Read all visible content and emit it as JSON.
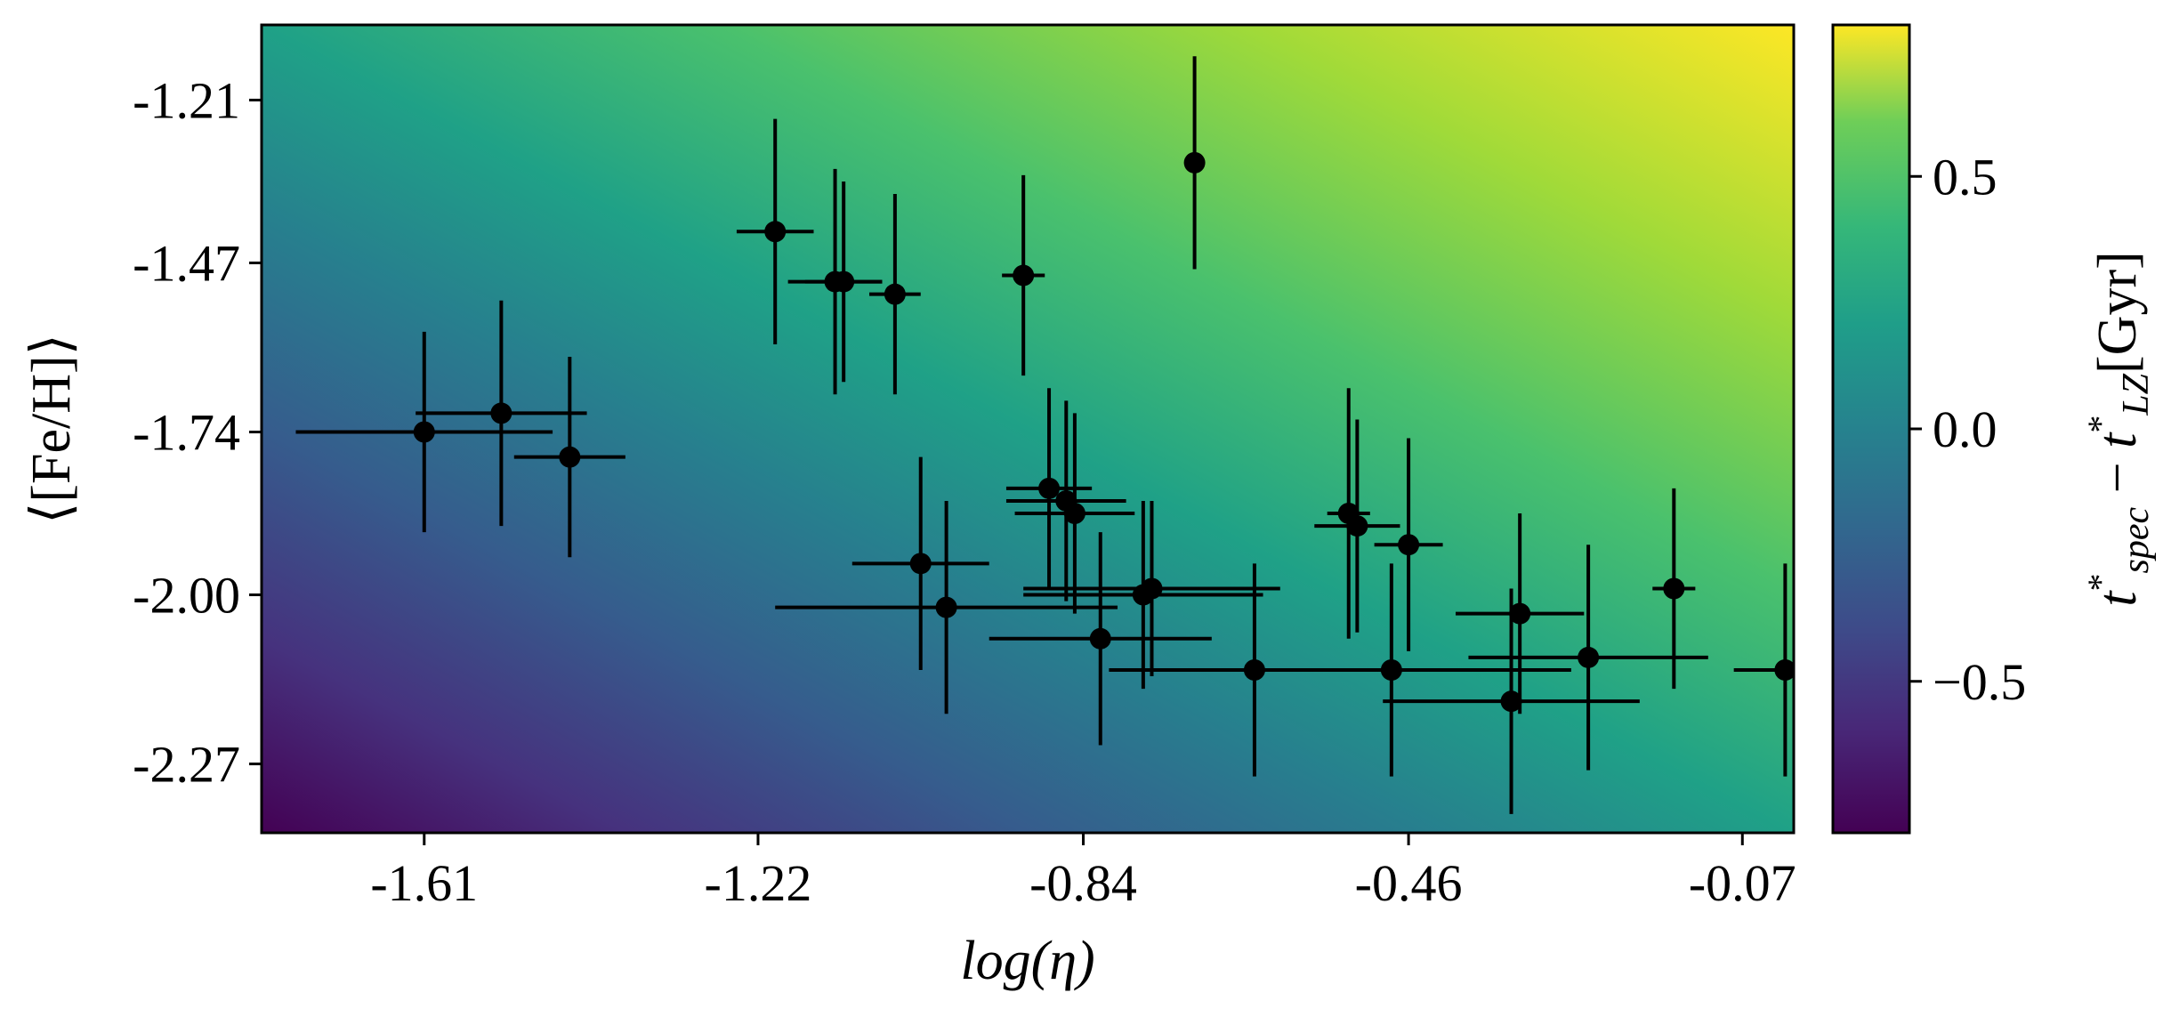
{
  "chart_data": {
    "type": "scatter",
    "xlabel": "log(η)",
    "ylabel": "⟨[Fe/H]⟩",
    "xlim": [
      -1.8,
      -0.01
    ],
    "ylim": [
      -2.38,
      -1.09
    ],
    "xticks": [
      -1.61,
      -1.22,
      -0.84,
      -0.46,
      -0.07
    ],
    "xtick_labels": [
      "-1.61",
      "-1.22",
      "-0.84",
      "-0.46",
      "-0.07"
    ],
    "yticks": [
      -1.21,
      -1.47,
      -1.74,
      -2.0,
      -2.27
    ],
    "ytick_labels": [
      "-1.21",
      "-1.47",
      "-1.74",
      "-2.00",
      "-2.27"
    ],
    "grid": false,
    "background": {
      "type": "heatmap",
      "colormap": "viridis",
      "trend": "increases toward upper-right"
    },
    "colorbar": {
      "label": "t*_spec − t*_LZ [Gyr]",
      "range": [
        -0.8,
        0.8
      ],
      "ticks": [
        0.5,
        0.0,
        -0.5
      ],
      "tick_labels": [
        "0.5",
        "0.0",
        "−0.5"
      ]
    },
    "colors": {
      "points": "#000000"
    },
    "points": [
      {
        "x": -1.61,
        "y": -1.74,
        "xerr": 0.15,
        "yerr": 0.16
      },
      {
        "x": -1.52,
        "y": -1.71,
        "xerr": 0.1,
        "yerr": 0.18
      },
      {
        "x": -1.44,
        "y": -1.78,
        "xerr": 0.065,
        "yerr": 0.16
      },
      {
        "x": -1.2,
        "y": -1.42,
        "xerr": 0.045,
        "yerr": 0.18
      },
      {
        "x": -1.13,
        "y": -1.5,
        "xerr": 0.055,
        "yerr": 0.18
      },
      {
        "x": -1.12,
        "y": -1.5,
        "xerr": 0.045,
        "yerr": 0.16
      },
      {
        "x": -1.06,
        "y": -1.52,
        "xerr": 0.03,
        "yerr": 0.16
      },
      {
        "x": -1.03,
        "y": -1.95,
        "xerr": 0.08,
        "yerr": 0.17
      },
      {
        "x": -1.0,
        "y": -2.02,
        "xerr": 0.2,
        "yerr": 0.17
      },
      {
        "x": -0.91,
        "y": -1.49,
        "xerr": 0.025,
        "yerr": 0.16
      },
      {
        "x": -0.88,
        "y": -1.83,
        "xerr": 0.05,
        "yerr": 0.16
      },
      {
        "x": -0.86,
        "y": -1.85,
        "xerr": 0.07,
        "yerr": 0.16
      },
      {
        "x": -0.85,
        "y": -1.87,
        "xerr": 0.07,
        "yerr": 0.16
      },
      {
        "x": -0.82,
        "y": -2.07,
        "xerr": 0.13,
        "yerr": 0.17
      },
      {
        "x": -0.77,
        "y": -2.0,
        "xerr": 0.14,
        "yerr": 0.15
      },
      {
        "x": -0.76,
        "y": -1.99,
        "xerr": 0.15,
        "yerr": 0.14
      },
      {
        "x": -0.71,
        "y": -1.31,
        "xerr": 0.0,
        "yerr": 0.17
      },
      {
        "x": -0.64,
        "y": -2.12,
        "xerr": 0.17,
        "yerr": 0.17
      },
      {
        "x": -0.53,
        "y": -1.87,
        "xerr": 0.025,
        "yerr": 0.2
      },
      {
        "x": -0.52,
        "y": -1.89,
        "xerr": 0.05,
        "yerr": 0.17
      },
      {
        "x": -0.48,
        "y": -2.12,
        "xerr": 0.21,
        "yerr": 0.17
      },
      {
        "x": -0.46,
        "y": -1.92,
        "xerr": 0.04,
        "yerr": 0.17
      },
      {
        "x": -0.34,
        "y": -2.17,
        "xerr": 0.15,
        "yerr": 0.18
      },
      {
        "x": -0.33,
        "y": -2.03,
        "xerr": 0.075,
        "yerr": 0.16
      },
      {
        "x": -0.25,
        "y": -2.1,
        "xerr": 0.14,
        "yerr": 0.18
      },
      {
        "x": -0.15,
        "y": -1.99,
        "xerr": 0.025,
        "yerr": 0.16
      },
      {
        "x": -0.02,
        "y": -2.12,
        "xerr": 0.06,
        "yerr": 0.17
      }
    ]
  }
}
